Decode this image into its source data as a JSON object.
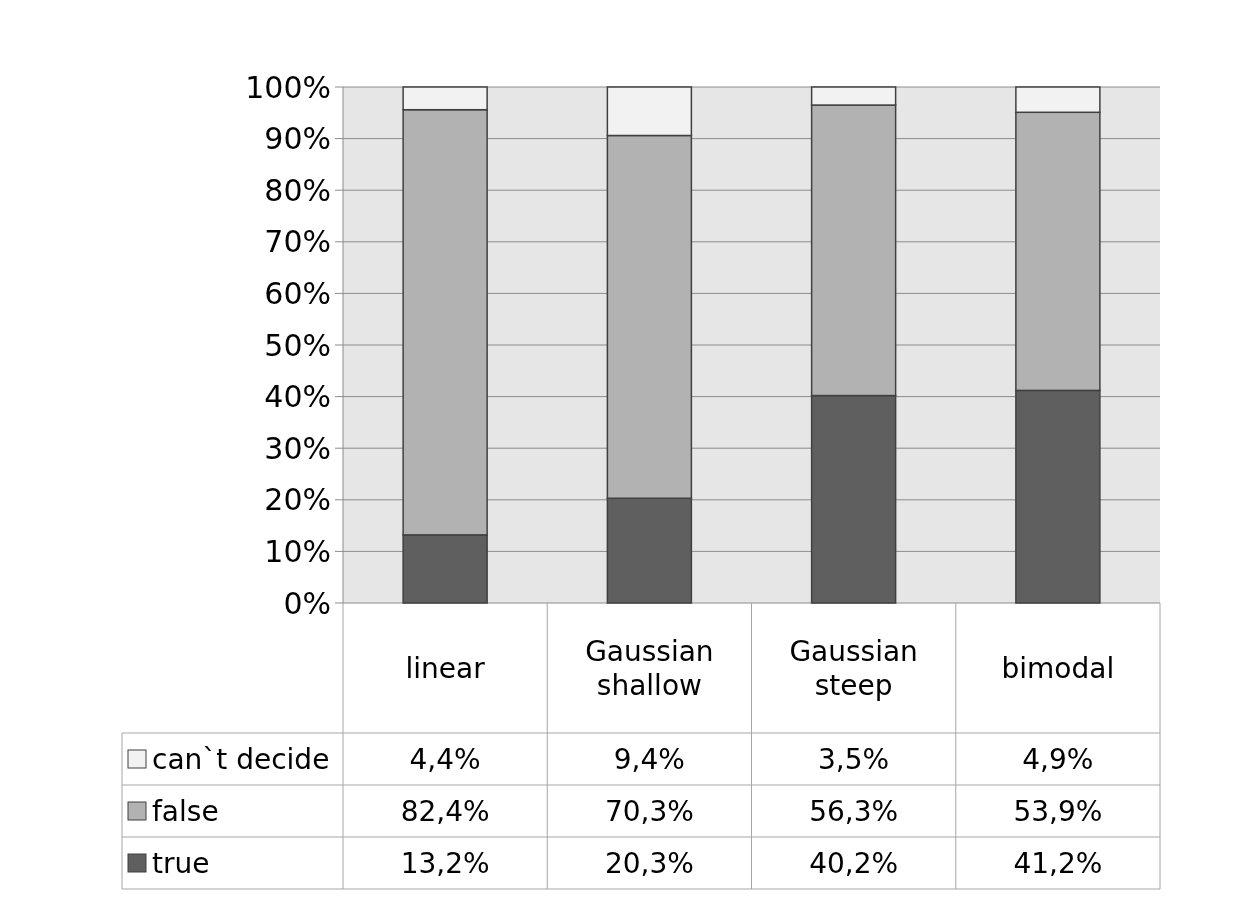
{
  "chart_data": {
    "type": "bar",
    "stacked": true,
    "categories": [
      "linear",
      "Gaussian shallow",
      "Gaussian steep",
      "bimodal"
    ],
    "series": [
      {
        "name": "true",
        "color": "#5f5f5f",
        "values": [
          13.2,
          20.3,
          40.2,
          41.2
        ],
        "value_labels": [
          "13,2%",
          "20,3%",
          "40,2%",
          "41,2%"
        ]
      },
      {
        "name": "false",
        "color": "#b2b2b2",
        "values": [
          82.4,
          70.3,
          56.3,
          53.9
        ],
        "value_labels": [
          "82,4%",
          "70,3%",
          "56,3%",
          "53,9%"
        ]
      },
      {
        "name": "can`t decide",
        "color": "#f2f2f2",
        "values": [
          4.4,
          9.4,
          3.5,
          4.9
        ],
        "value_labels": [
          "4,4%",
          "9,4%",
          "3,5%",
          "4,9%"
        ]
      }
    ],
    "ylim": [
      0,
      100
    ],
    "yticks": [
      {
        "value": 0,
        "label": "0%"
      },
      {
        "value": 10,
        "label": "10%"
      },
      {
        "value": 20,
        "label": "20%"
      },
      {
        "value": 30,
        "label": "30%"
      },
      {
        "value": 40,
        "label": "40%"
      },
      {
        "value": 50,
        "label": "50%"
      },
      {
        "value": 60,
        "label": "60%"
      },
      {
        "value": 70,
        "label": "70%"
      },
      {
        "value": 80,
        "label": "80%"
      },
      {
        "value": 90,
        "label": "90%"
      },
      {
        "value": 100,
        "label": "100%"
      }
    ],
    "grid": "y",
    "legend": "bottom"
  }
}
